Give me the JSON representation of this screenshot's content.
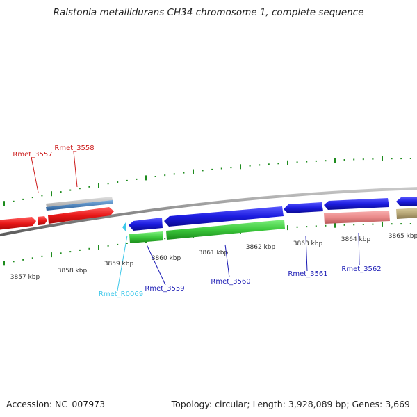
{
  "title": "Ralstonia metallidurans CH34 chromosome 1, complete sequence",
  "footer": {
    "accession": "Accession: NC_007973",
    "summary": "Topology: circular; Length: 3,928,089 bp; Genes: 3,669"
  },
  "colors": {
    "backbone": "#8c8c8c",
    "tick": "#1e8c1e",
    "protein_coding": "#1f1fdc",
    "rna": "#e02020",
    "pseudo": "#ea8a8a",
    "other": "#b8a878",
    "trna": "#3ec8ea",
    "gray_feature": "#b8b8b8",
    "blue_gray_feature": "#3b78b4"
  },
  "kbp_labels": [
    "3857 kbp",
    "3858 kbp",
    "3859 kbp",
    "3860 kbp",
    "3861 kbp",
    "3862 kbp",
    "3863 kbp",
    "3864 kbp",
    "3865 kbp"
  ],
  "gene_labels": [
    {
      "text": "Rmet_3557",
      "color": "#cc1a1a"
    },
    {
      "text": "Rmet_3558",
      "color": "#cc1a1a"
    },
    {
      "text": "Rmet_R0069",
      "color": "#3ec8ea"
    },
    {
      "text": "Rmet_3559",
      "color": "#1a1ab4"
    },
    {
      "text": "Rmet_3560",
      "color": "#1a1ab4"
    },
    {
      "text": "Rmet_3561",
      "color": "#1a1ab4"
    },
    {
      "text": "Rmet_3562",
      "color": "#1a1ab4"
    }
  ]
}
